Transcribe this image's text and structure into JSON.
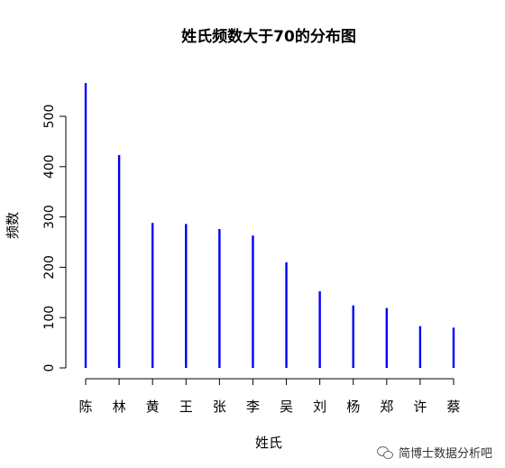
{
  "chart_data": {
    "type": "bar",
    "title": "姓氏频数大于70的分布图",
    "xlabel": "姓氏",
    "ylabel": "频数",
    "categories": [
      "陈",
      "林",
      "黄",
      "王",
      "张",
      "李",
      "吴",
      "刘",
      "杨",
      "郑",
      "许",
      "蔡"
    ],
    "values": [
      566,
      423,
      288,
      286,
      276,
      263,
      210,
      152,
      124,
      119,
      83,
      80
    ],
    "ylim": [
      0,
      566
    ],
    "yticks": [
      0,
      100,
      200,
      300,
      400,
      500
    ],
    "grid": false,
    "bar_color": "#0000ff"
  },
  "watermark": {
    "text": "简博士数据分析吧",
    "icon": "wechat-icon"
  }
}
